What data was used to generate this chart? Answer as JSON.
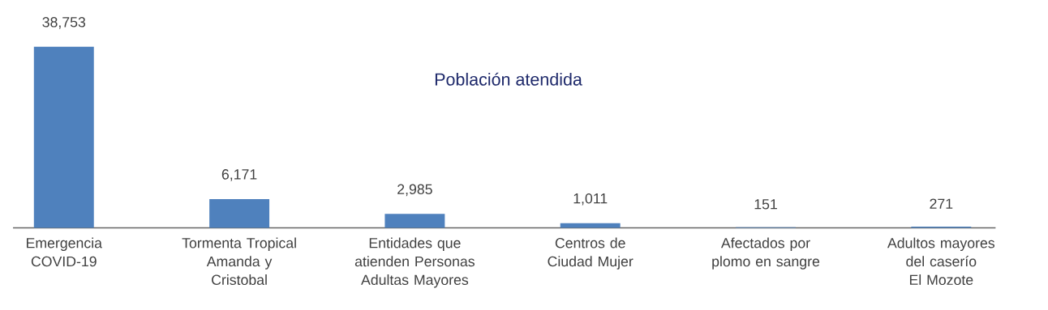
{
  "chart_data": {
    "type": "bar",
    "title": "Población atendida",
    "categories": [
      "Emergencia COVID-19",
      "Tormenta Tropical Amanda y Cristobal",
      "Entidades que atienden Personas Adultas Mayores",
      "Centros de Ciudad Mujer",
      "Afectados por plomo en sangre",
      "Adultos mayores del caserío El Mozote"
    ],
    "values": [
      38753,
      6171,
      2985,
      1011,
      151,
      271
    ],
    "value_labels": [
      "38,753",
      "6,171",
      "2,985",
      "1,011",
      "151",
      "271"
    ],
    "color": "#4f81bd"
  }
}
